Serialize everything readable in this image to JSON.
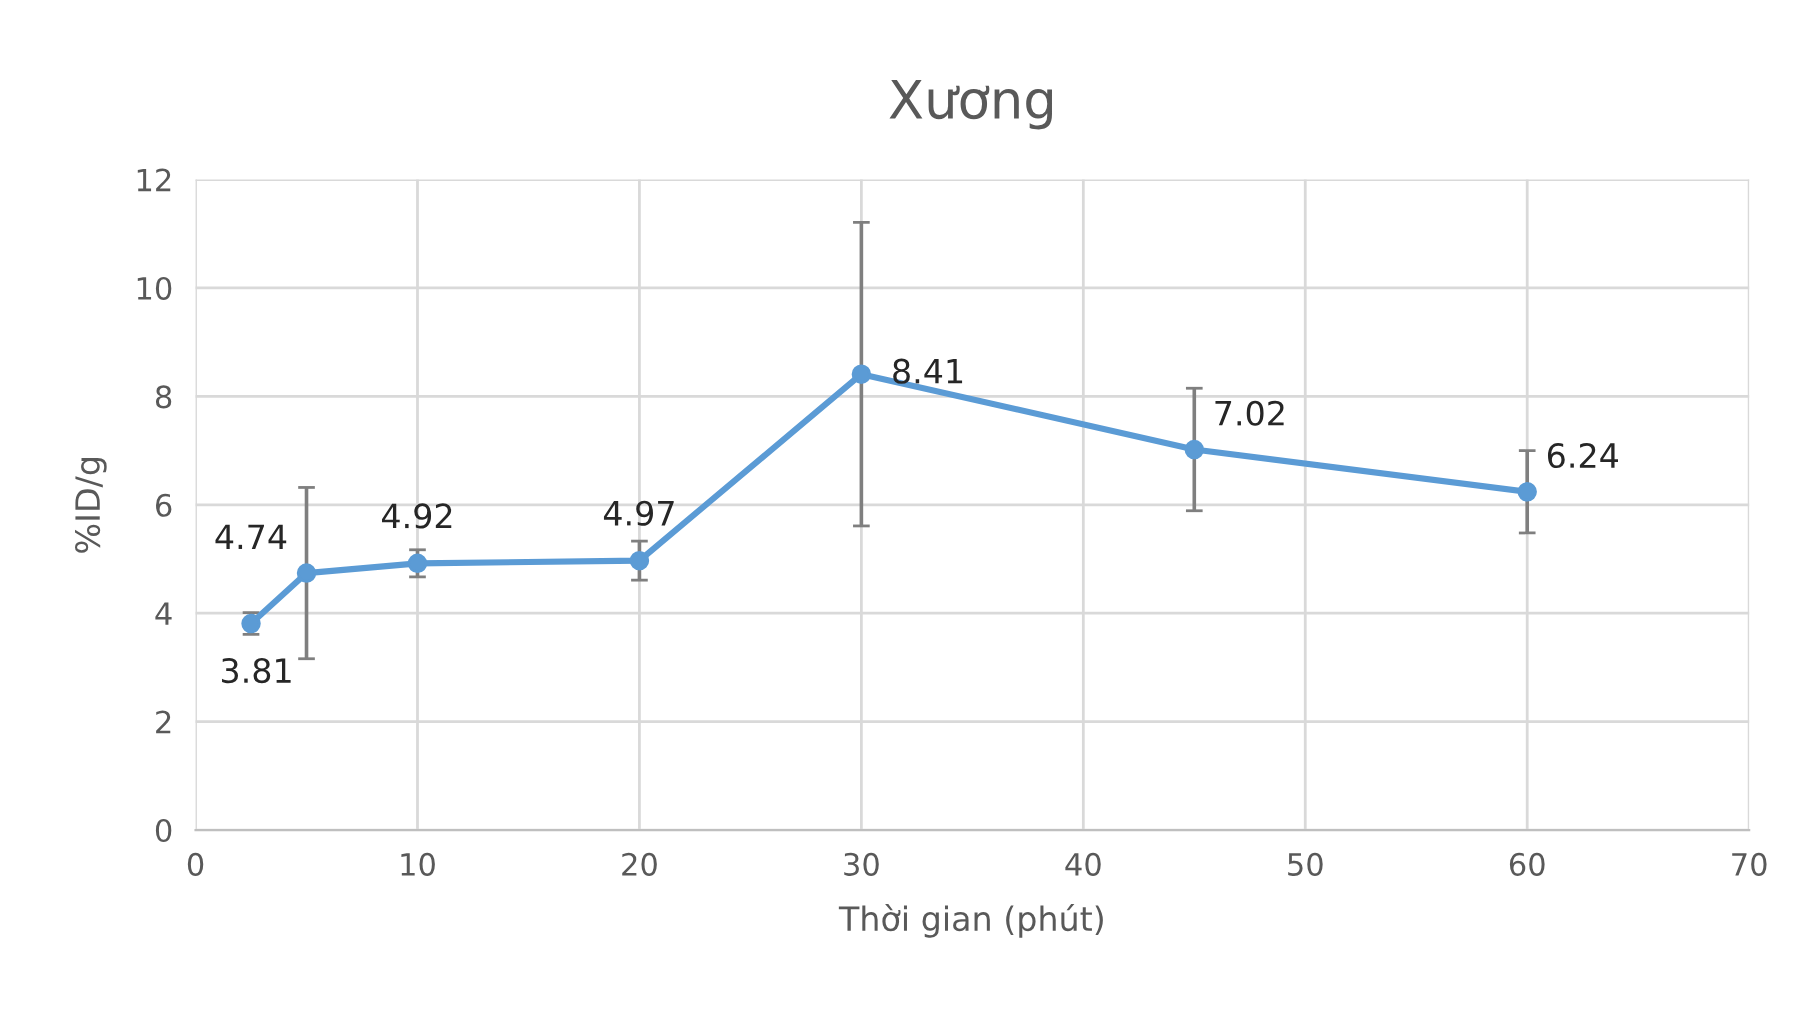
{
  "chart_data": {
    "type": "line",
    "title": "Xương",
    "xlabel": "Thời gian (phút)",
    "ylabel": "%ID/g",
    "x": [
      2.5,
      5,
      10,
      20,
      30,
      45,
      60
    ],
    "series": [
      {
        "color": "#5b9bd5",
        "values": [
          3.81,
          4.74,
          4.92,
          4.97,
          8.41,
          7.02,
          6.24
        ],
        "errors": [
          0.2,
          1.58,
          0.25,
          0.36,
          2.8,
          1.13,
          0.76
        ]
      }
    ],
    "xlim": [
      0,
      70
    ],
    "xticks": [
      0,
      10,
      20,
      30,
      40,
      50,
      60,
      70
    ],
    "ylim": [
      0,
      12
    ],
    "yticks": [
      0,
      2,
      4,
      6,
      8,
      10,
      12
    ],
    "grid": true,
    "marker": "circle",
    "line_style": "solid",
    "data_labels": true
  }
}
